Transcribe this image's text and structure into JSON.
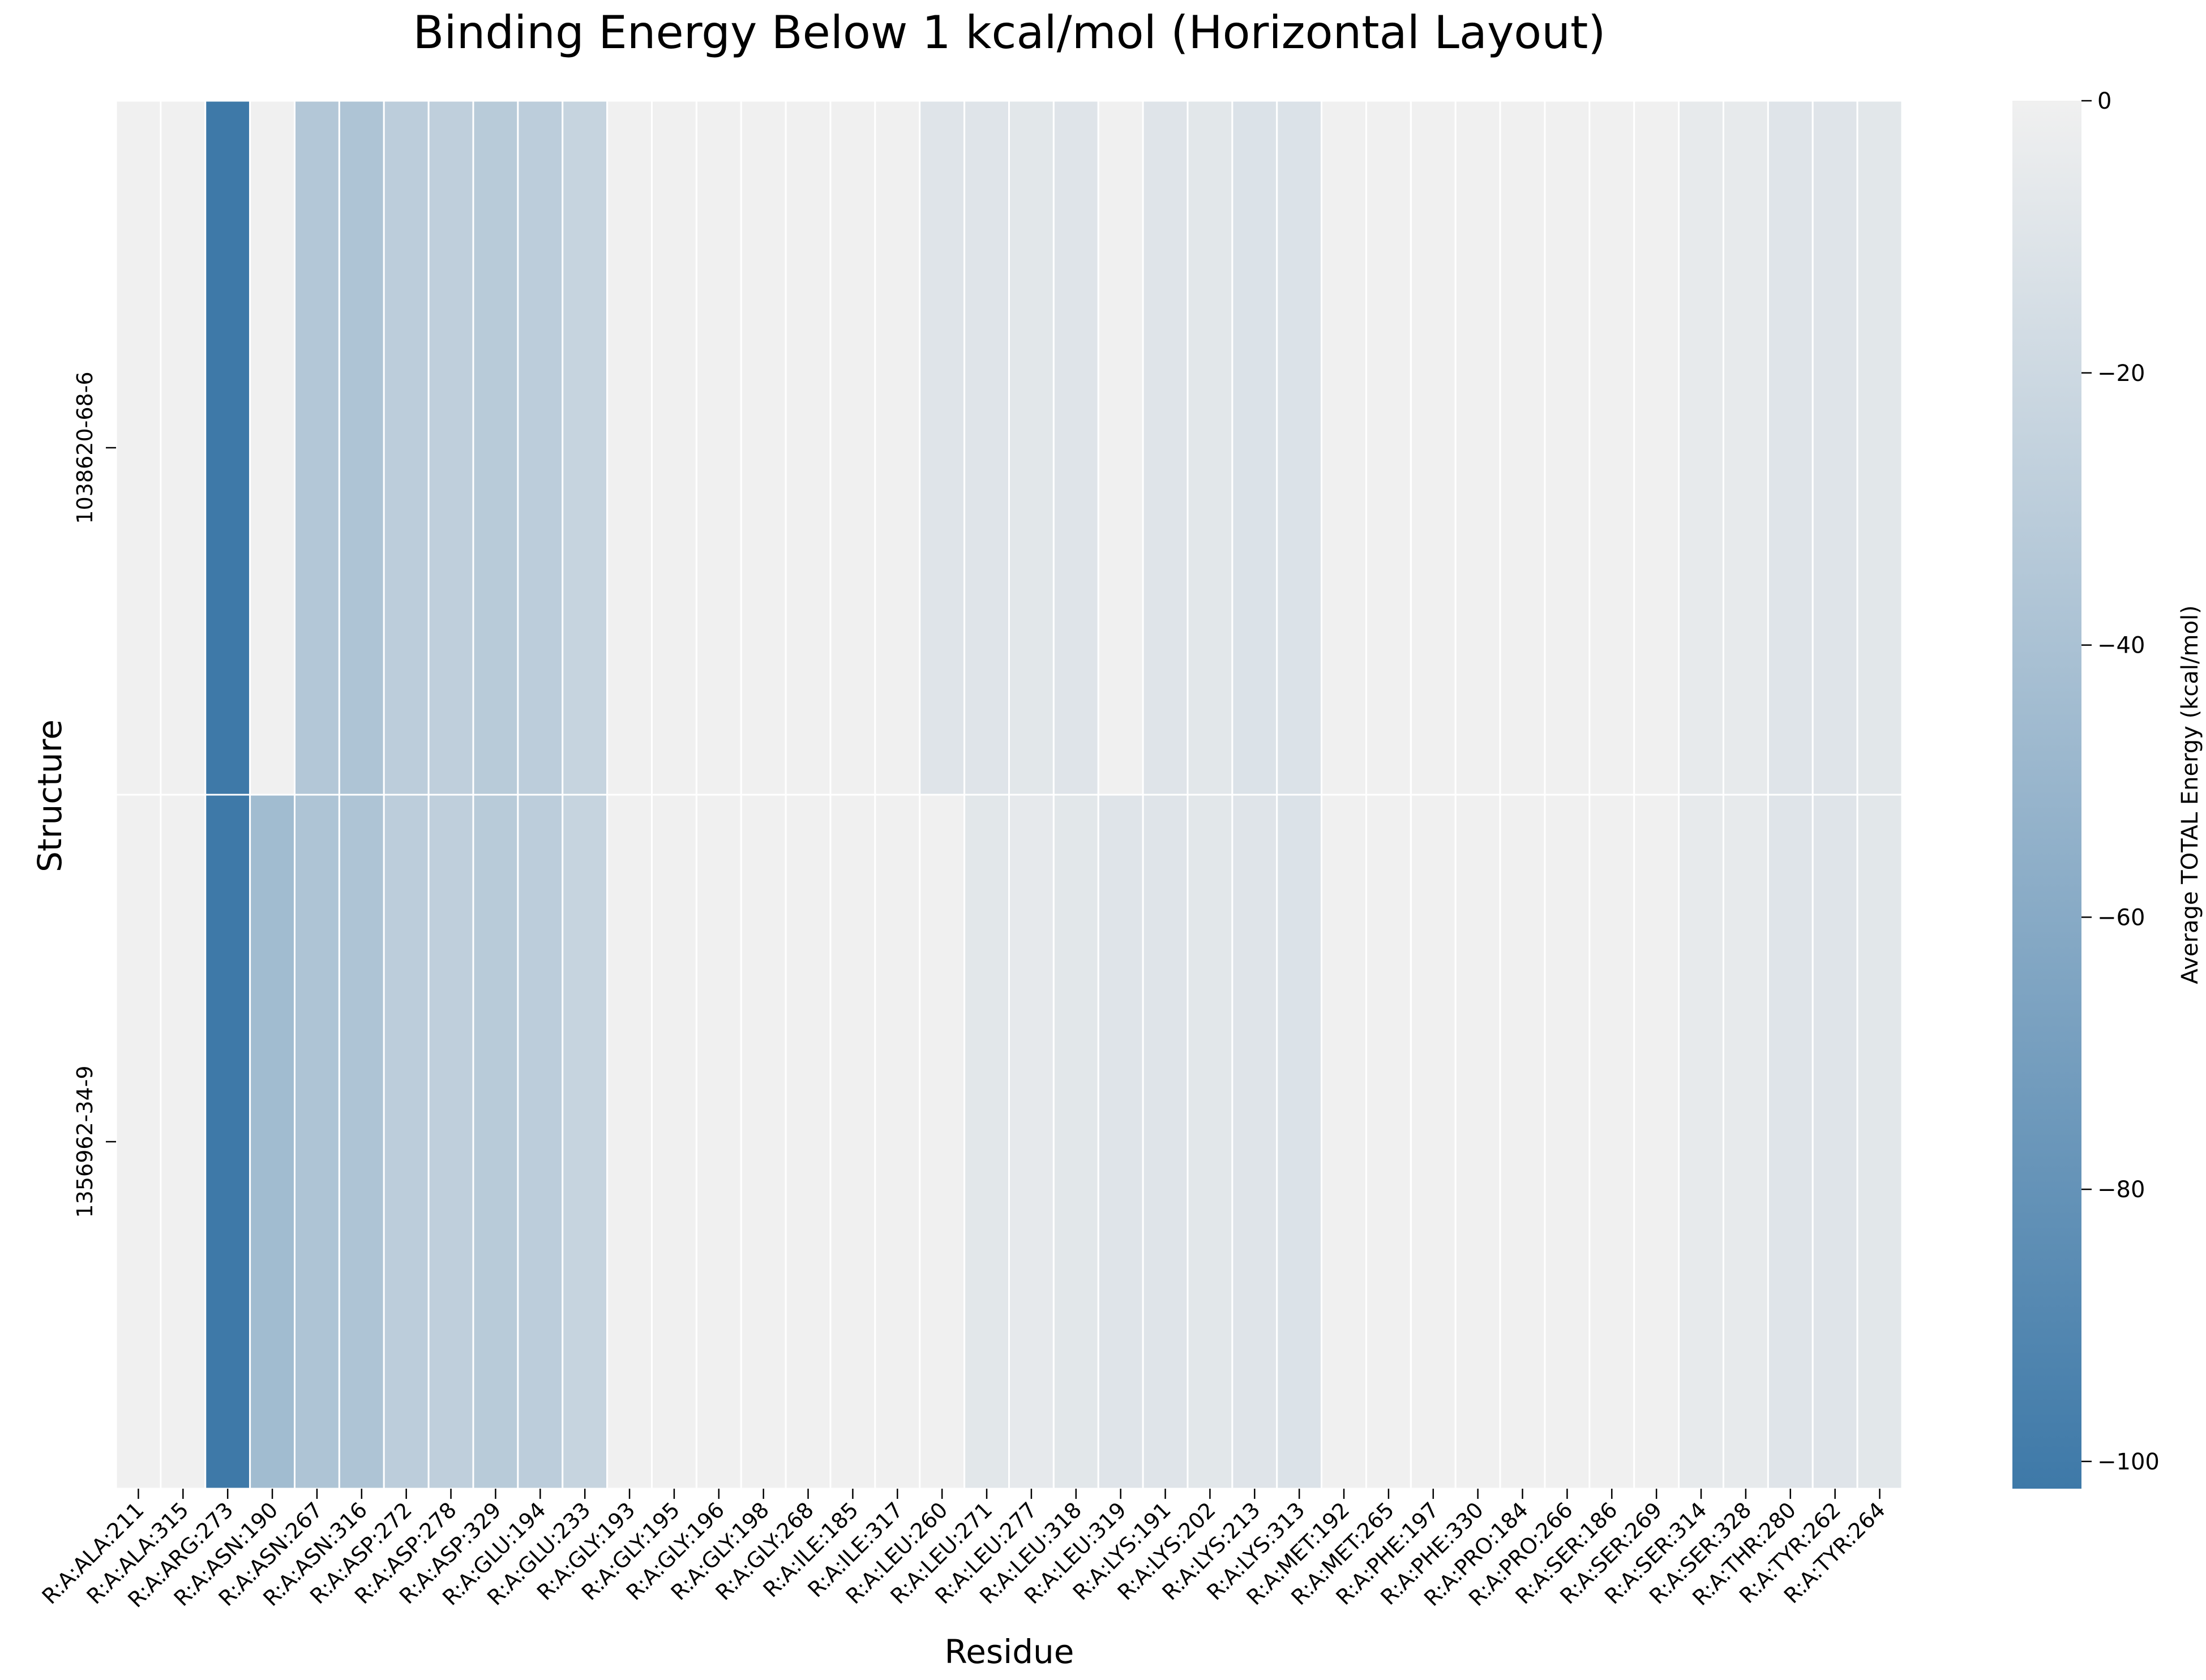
{
  "chart_data": {
    "type": "heatmap",
    "title": "Binding Energy Below 1 kcal/mol (Horizontal Layout)",
    "xlabel": "Residue",
    "ylabel": "Structure",
    "colorbar_label": "Average TOTAL Energy (kcal/mol)",
    "colorbar_range": [
      -102,
      0
    ],
    "colorbar_ticks": [
      0,
      -20,
      -40,
      -60,
      -80,
      -100
    ],
    "colorbar_tick_labels": [
      "0",
      "−20",
      "−40",
      "−60",
      "−80",
      "−100"
    ],
    "colormap": {
      "low": "#3e79a8",
      "high": "#f0f0f0"
    },
    "cell_border_color": "#ffffff",
    "rows": [
      "1038620-68-6",
      "1356962-34-9"
    ],
    "columns": [
      "R:A:ALA:211",
      "R:A:ALA:315",
      "R:A:ARG:273",
      "R:A:ASN:190",
      "R:A:ASN:267",
      "R:A:ASN:316",
      "R:A:ASP:272",
      "R:A:ASP:278",
      "R:A:ASP:329",
      "R:A:GLU:194",
      "R:A:GLU:233",
      "R:A:GLY:193",
      "R:A:GLY:195",
      "R:A:GLY:196",
      "R:A:GLY:198",
      "R:A:GLY:268",
      "R:A:ILE:185",
      "R:A:ILE:317",
      "R:A:LEU:260",
      "R:A:LEU:271",
      "R:A:LEU:277",
      "R:A:LEU:318",
      "R:A:LEU:319",
      "R:A:LYS:191",
      "R:A:LYS:202",
      "R:A:LYS:213",
      "R:A:LYS:313",
      "R:A:MET:192",
      "R:A:MET:265",
      "R:A:PHE:197",
      "R:A:PHE:330",
      "R:A:PRO:184",
      "R:A:PRO:266",
      "R:A:SER:186",
      "R:A:SER:269",
      "R:A:SER:314",
      "R:A:SER:328",
      "R:A:THR:280",
      "R:A:TYR:262",
      "R:A:TYR:264"
    ],
    "values": [
      [
        0,
        0,
        -102,
        0,
        -35,
        -38,
        -30,
        -28,
        -32,
        -30,
        -24,
        0,
        0,
        0,
        0,
        0,
        0,
        0,
        -10,
        -10,
        -8,
        -10,
        0,
        -10,
        -8,
        -12,
        -12,
        0,
        0,
        0,
        0,
        0,
        0,
        0,
        0,
        -5,
        -5,
        -10,
        -10,
        -8
      ],
      [
        0,
        0,
        -102,
        -45,
        -38,
        -38,
        -30,
        -28,
        -32,
        -30,
        -24,
        0,
        0,
        0,
        0,
        0,
        0,
        0,
        0,
        -8,
        -6,
        -8,
        -10,
        -10,
        -8,
        -10,
        -12,
        0,
        0,
        0,
        0,
        0,
        0,
        0,
        0,
        -5,
        -5,
        -10,
        -10,
        -8
      ]
    ]
  }
}
